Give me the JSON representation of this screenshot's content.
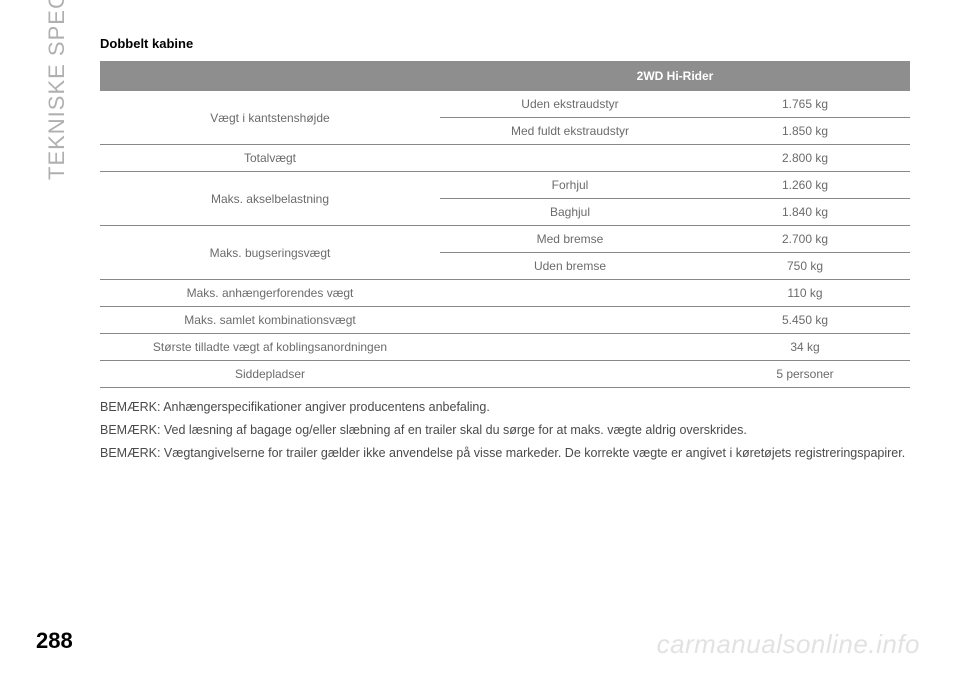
{
  "sidebar": {
    "label": "TEKNISKE SPECIFIKATIONER"
  },
  "page": {
    "number": "288"
  },
  "watermark": {
    "text": "carmanualsonline.info"
  },
  "section": {
    "subtitle": "Dobbelt kabine",
    "header_blank": "",
    "header_variant": "2WD Hi-Rider",
    "rows": [
      {
        "label": "Vægt i kantstenshøjde",
        "sub": "Uden ekstraudstyr",
        "val": "1.765 kg",
        "rowspan": 2
      },
      {
        "label": "",
        "sub": "Med fuldt ekstraudstyr",
        "val": "1.850 kg"
      },
      {
        "label": "Totalvægt",
        "sub": "",
        "val": "2.800 kg",
        "colspan_sub": true
      },
      {
        "label": "Maks. akselbelastning",
        "sub": "Forhjul",
        "val": "1.260 kg",
        "rowspan": 2
      },
      {
        "label": "",
        "sub": "Baghjul",
        "val": "1.840 kg"
      },
      {
        "label": "Maks. bugseringsvægt",
        "sub": "Med bremse",
        "val": "2.700 kg",
        "rowspan": 2
      },
      {
        "label": "",
        "sub": "Uden bremse",
        "val": "750 kg"
      },
      {
        "label": "Maks. anhængerforendes vægt",
        "sub": "",
        "val": "110 kg",
        "colspan_sub": true
      },
      {
        "label": "Maks. samlet kombinationsvægt",
        "sub": "",
        "val": "5.450 kg",
        "colspan_sub": true
      },
      {
        "label": "Største tilladte vægt af koblingsanordningen",
        "sub": "",
        "val": "34 kg",
        "colspan_sub": true
      },
      {
        "label": "Siddepladser",
        "sub": "",
        "val": "5 personer",
        "colspan_sub": true
      }
    ]
  },
  "notes": {
    "n1": "BEMÆRK: Anhængerspecifikationer angiver producentens anbefaling.",
    "n2": "BEMÆRK: Ved læsning af bagage og/eller slæbning af en trailer skal du sørge for at maks. vægte aldrig overskrides.",
    "n3": "BEMÆRK: Vægtangivelserne for trailer gælder ikke anvendelse på visse markeder. De korrekte vægte er angivet i køretøjets registreringspapirer."
  }
}
